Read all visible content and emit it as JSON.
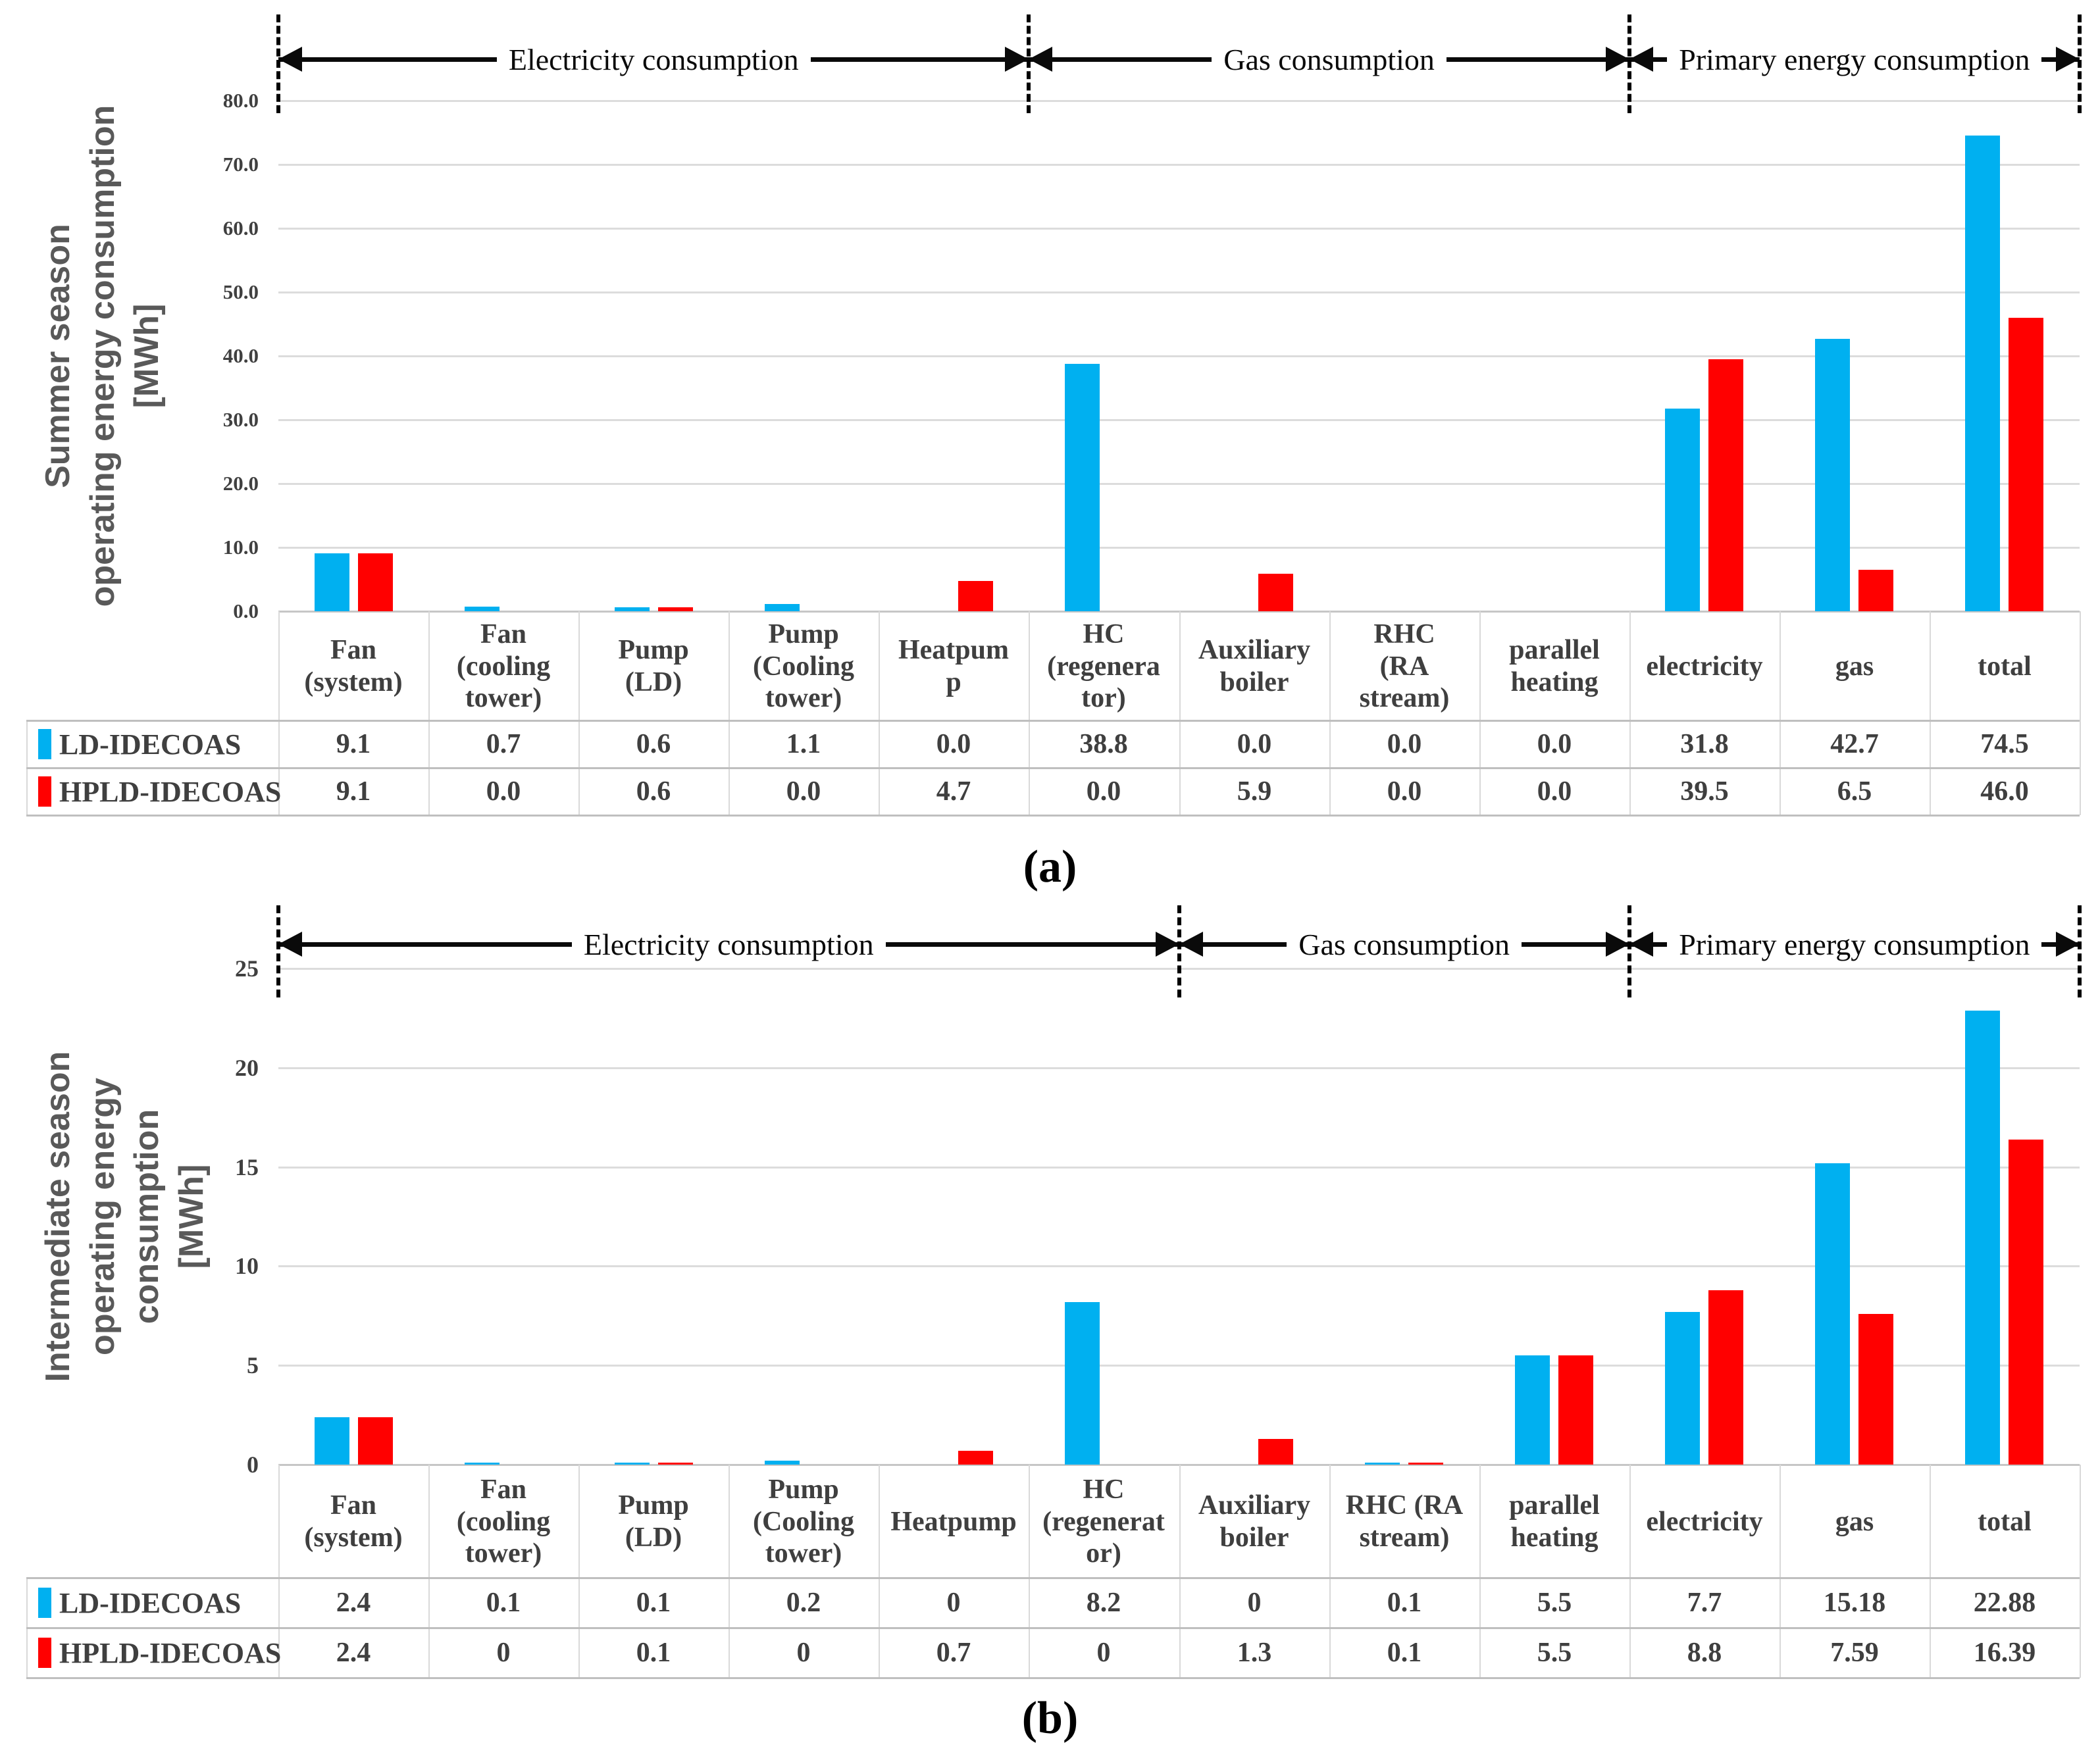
{
  "figure": {
    "background": "#ffffff",
    "captions": [
      "(a)",
      "(b)"
    ]
  },
  "chart_data": [
    {
      "type": "bar",
      "title": "",
      "caption": "(a)",
      "ylabel_lines": [
        "Summer season",
        "operating energy consumption",
        "[MWh]"
      ],
      "ylim": [
        0,
        80
      ],
      "ytick_step": 10,
      "yticks": [
        "80.0",
        "70.0",
        "60.0",
        "50.0",
        "40.0",
        "30.0",
        "20.0",
        "10.0",
        "0.0"
      ],
      "grid": true,
      "legend_position": "table-left",
      "categories": [
        "Fan (system)",
        "Fan (cooling tower)",
        "Pump (LD)",
        "Pump (Cooling tower)",
        "Heatpump",
        "HC (regenerator)",
        "Auxiliary boiler",
        "RHC (RA stream)",
        "parallel heating",
        "electricity",
        "gas",
        "total"
      ],
      "categories_display": [
        "Fan\n(system)",
        "Fan\n(cooling\ntower)",
        "Pump\n(LD)",
        "Pump\n(Cooling\ntower)",
        "Heatpum\np",
        "HC\n(regenera\ntor)",
        "Auxiliary\nboiler",
        "RHC\n(RA\nstream)",
        "parallel\nheating",
        "electricity",
        "gas",
        "total"
      ],
      "sections": [
        {
          "label": "Electricity consumption",
          "start": 0,
          "end": 5
        },
        {
          "label": "Gas consumption",
          "start": 5,
          "end": 9
        },
        {
          "label": "Primary energy consumption",
          "start": 9,
          "end": 12
        }
      ],
      "series": [
        {
          "name": "LD-IDECOAS",
          "color": "#00B0F0",
          "values": [
            9.1,
            0.7,
            0.6,
            1.1,
            0.0,
            38.8,
            0.0,
            0.0,
            0.0,
            31.8,
            42.7,
            74.5
          ],
          "values_display": [
            "9.1",
            "0.7",
            "0.6",
            "1.1",
            "0.0",
            "38.8",
            "0.0",
            "0.0",
            "0.0",
            "31.8",
            "42.7",
            "74.5"
          ]
        },
        {
          "name": "HPLD-IDECOAS",
          "color": "#FF0000",
          "values": [
            9.1,
            0.0,
            0.6,
            0.0,
            4.7,
            0.0,
            5.9,
            0.0,
            0.0,
            39.5,
            6.5,
            46.0
          ],
          "values_display": [
            "9.1",
            "0.0",
            "0.6",
            "0.0",
            "4.7",
            "0.0",
            "5.9",
            "0.0",
            "0.0",
            "39.5",
            "6.5",
            "46.0"
          ]
        }
      ]
    },
    {
      "type": "bar",
      "title": "",
      "caption": "(b)",
      "ylabel_lines": [
        "Intermediate season",
        "operating energy consumption",
        "[MWh]"
      ],
      "ylim": [
        0,
        25
      ],
      "ytick_step": 5,
      "yticks": [
        "25",
        "20",
        "15",
        "10",
        "5",
        "0"
      ],
      "grid": true,
      "legend_position": "table-left",
      "categories": [
        "Fan (system)",
        "Fan (cooling tower)",
        "Pump (LD)",
        "Pump (Cooling tower)",
        "Heatpump",
        "HC (regenerator)",
        "Auxiliary boiler",
        "RHC (RA stream)",
        "parallel heating",
        "electricity",
        "gas",
        "total"
      ],
      "categories_display": [
        "Fan\n(system)",
        "Fan\n(cooling\ntower)",
        "Pump\n(LD)",
        "Pump\n(Cooling\ntower)",
        "Heatpump",
        "HC\n(regenerat\nor)",
        "Auxiliary\nboiler",
        "RHC (RA\nstream)",
        "parallel\nheating",
        "electricity",
        "gas",
        "total"
      ],
      "sections": [
        {
          "label": "Electricity consumption",
          "start": 0,
          "end": 6
        },
        {
          "label": "Gas consumption",
          "start": 6,
          "end": 9
        },
        {
          "label": "Primary energy consumption",
          "start": 9,
          "end": 12
        }
      ],
      "series": [
        {
          "name": "LD-IDECOAS",
          "color": "#00B0F0",
          "values": [
            2.4,
            0.1,
            0.1,
            0.2,
            0,
            8.2,
            0,
            0.1,
            5.5,
            7.7,
            15.18,
            22.88
          ],
          "values_display": [
            "2.4",
            "0.1",
            "0.1",
            "0.2",
            "0",
            "8.2",
            "0",
            "0.1",
            "5.5",
            "7.7",
            "15.18",
            "22.88"
          ]
        },
        {
          "name": "HPLD-IDECOAS",
          "color": "#FF0000",
          "values": [
            2.4,
            0,
            0.1,
            0,
            0.7,
            0,
            1.3,
            0.1,
            5.5,
            8.8,
            7.59,
            16.39
          ],
          "values_display": [
            "2.4",
            "0",
            "0.1",
            "0",
            "0.7",
            "0",
            "1.3",
            "0.1",
            "5.5",
            "8.8",
            "7.59",
            "16.39"
          ]
        }
      ]
    }
  ]
}
